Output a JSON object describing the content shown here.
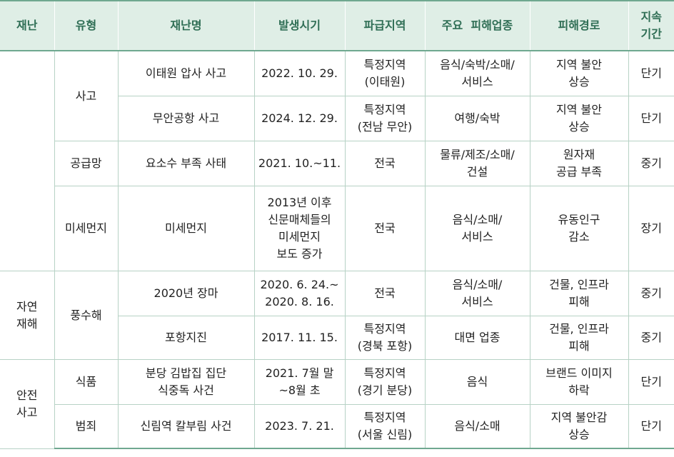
{
  "headers": [
    "재난",
    "유형",
    "재난명",
    "발생시기",
    "파급지역",
    "주요  피해업종",
    "피해경로",
    "지속\n기간"
  ],
  "groups": {
    "natural": "자연\n재해",
    "safety": "안전\n사고"
  },
  "types": {
    "accident": "사고",
    "supply": "공급망",
    "dust": "미세먼지",
    "flood": "풍수해",
    "food": "식품",
    "crime": "범죄"
  },
  "rows": [
    {
      "name": "이태원 압사 사고",
      "date": "2022. 10. 29.",
      "region": "특정지역\n(이태원)",
      "industry": "음식/숙박/소매/\n서비스",
      "path": "지역 불안\n상승",
      "duration": "단기"
    },
    {
      "name": "무안공항 사고",
      "date": "2024. 12. 29.",
      "region": "특정지역\n(전남 무안)",
      "industry": "여행/숙박",
      "path": "지역 불안\n상승",
      "duration": "단기"
    },
    {
      "name": "요소수 부족 사태",
      "date": "2021. 10.~11.",
      "region": "전국",
      "industry": "물류/제조/소매/\n건설",
      "path": "원자재\n공급 부족",
      "duration": "중기"
    },
    {
      "name": "미세먼지",
      "date": "2013년 이후\n신문매체들의\n미세먼지\n보도 증가",
      "region": "전국",
      "industry": "음식/소매/\n서비스",
      "path": "유동인구\n감소",
      "duration": "장기"
    },
    {
      "name": "2020년 장마",
      "date": "2020. 6. 24.~\n2020. 8. 16.",
      "region": "전국",
      "industry": "음식/소매/\n서비스",
      "path": "건물, 인프라\n피해",
      "duration": "중기"
    },
    {
      "name": "포항지진",
      "date": "2017. 11. 15.",
      "region": "특정지역\n(경북 포항)",
      "industry": "대면 업종",
      "path": "건물, 인프라\n피해",
      "duration": "중기"
    },
    {
      "name": "분당 김밥집 집단\n식중독 사건",
      "date": "2021. 7월 말\n~8월 초",
      "region": "특정지역\n(경기 분당)",
      "industry": "음식",
      "path": "브랜드 이미지\n하락",
      "duration": "단기"
    },
    {
      "name": "신림역 칼부림 사건",
      "date": "2023. 7. 21.",
      "region": "특정지역\n(서울 신림)",
      "industry": "음식/소매",
      "path": "지역 불안감\n상승",
      "duration": "단기"
    }
  ]
}
